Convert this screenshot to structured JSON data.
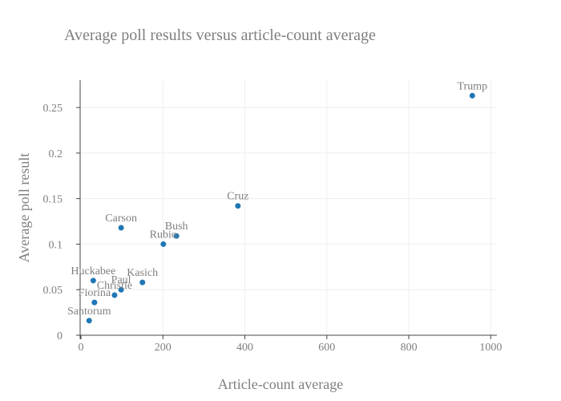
{
  "chart_data": {
    "type": "scatter",
    "title": "Average poll results versus article-count average",
    "xlabel": "Article-count average",
    "ylabel": "Average poll result",
    "xlim": [
      -2,
      1015
    ],
    "ylim": [
      0,
      0.28
    ],
    "xticks": [
      0,
      200,
      400,
      600,
      800,
      1000
    ],
    "xtick_labels": [
      "0",
      "200",
      "400",
      "600",
      "800",
      "1000"
    ],
    "yticks": [
      0,
      0.05,
      0.1,
      0.15,
      0.2,
      0.25
    ],
    "ytick_labels": [
      "0",
      "0.05",
      "0.1",
      "0.15",
      "0.2",
      "0.25"
    ],
    "grid": true,
    "marker_color": "#1f77b4",
    "points": [
      {
        "label": "Trump",
        "x": 955,
        "y": 0.263
      },
      {
        "label": "Cruz",
        "x": 383,
        "y": 0.142
      },
      {
        "label": "Carson",
        "x": 98,
        "y": 0.118
      },
      {
        "label": "Bush",
        "x": 233,
        "y": 0.109
      },
      {
        "label": "Rubio",
        "x": 201,
        "y": 0.1
      },
      {
        "label": "Huckabee",
        "x": 30,
        "y": 0.06
      },
      {
        "label": "Kasich",
        "x": 150,
        "y": 0.058
      },
      {
        "label": "Paul",
        "x": 98,
        "y": 0.05
      },
      {
        "label": "Christie",
        "x": 82,
        "y": 0.044
      },
      {
        "label": "Fiorina",
        "x": 33,
        "y": 0.036
      },
      {
        "label": "Santorum",
        "x": 20,
        "y": 0.016
      }
    ]
  }
}
